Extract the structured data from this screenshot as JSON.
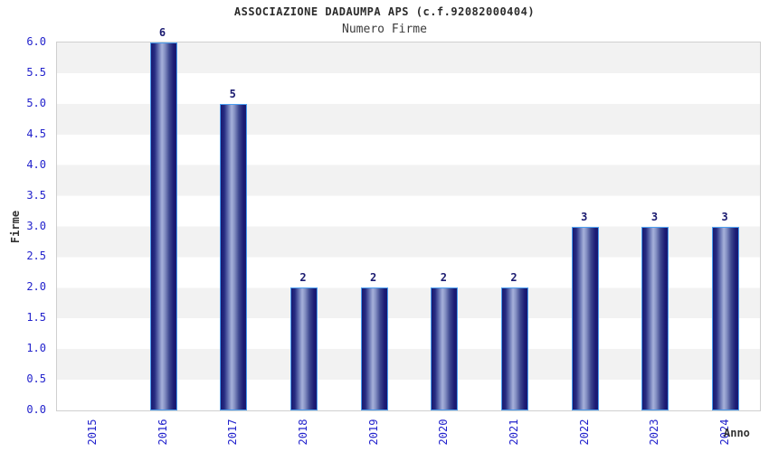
{
  "chart_data": {
    "type": "bar",
    "title": "ASSOCIAZIONE DADAUMPA APS (c.f.92082000404)",
    "subtitle": "Numero Firme",
    "categories": [
      "2015",
      "2016",
      "2017",
      "2018",
      "2019",
      "2020",
      "2021",
      "2022",
      "2023",
      "2024"
    ],
    "values": [
      0,
      6,
      5,
      2,
      2,
      2,
      2,
      3,
      3,
      3
    ],
    "bar_labels": [
      "",
      "6",
      "5",
      "2",
      "2",
      "2",
      "2",
      "3",
      "3",
      "3"
    ],
    "xlabel": "Anno",
    "ylabel": "Firme",
    "ylim": [
      0,
      6
    ],
    "ytick_step": 0.5,
    "yticks": [
      "0.0",
      "0.5",
      "1.0",
      "1.5",
      "2.0",
      "2.5",
      "3.0",
      "3.5",
      "4.0",
      "4.5",
      "5.0",
      "5.5",
      "6.0"
    ],
    "grid": "alternating horizontal bands",
    "legend_position": "none"
  },
  "colors": {
    "tick_label_blue": "#2222cc",
    "value_label_navy": "#1a1a70",
    "bar_edge_dark": "#191970",
    "bar_center_light": "#a6b1da",
    "bar_border_blue": "#4a9df0",
    "band_gray": "#f2f2f2",
    "band_white": "#ffffff",
    "plot_border": "#cfcfcf",
    "title_text": "#2b2b2b"
  }
}
